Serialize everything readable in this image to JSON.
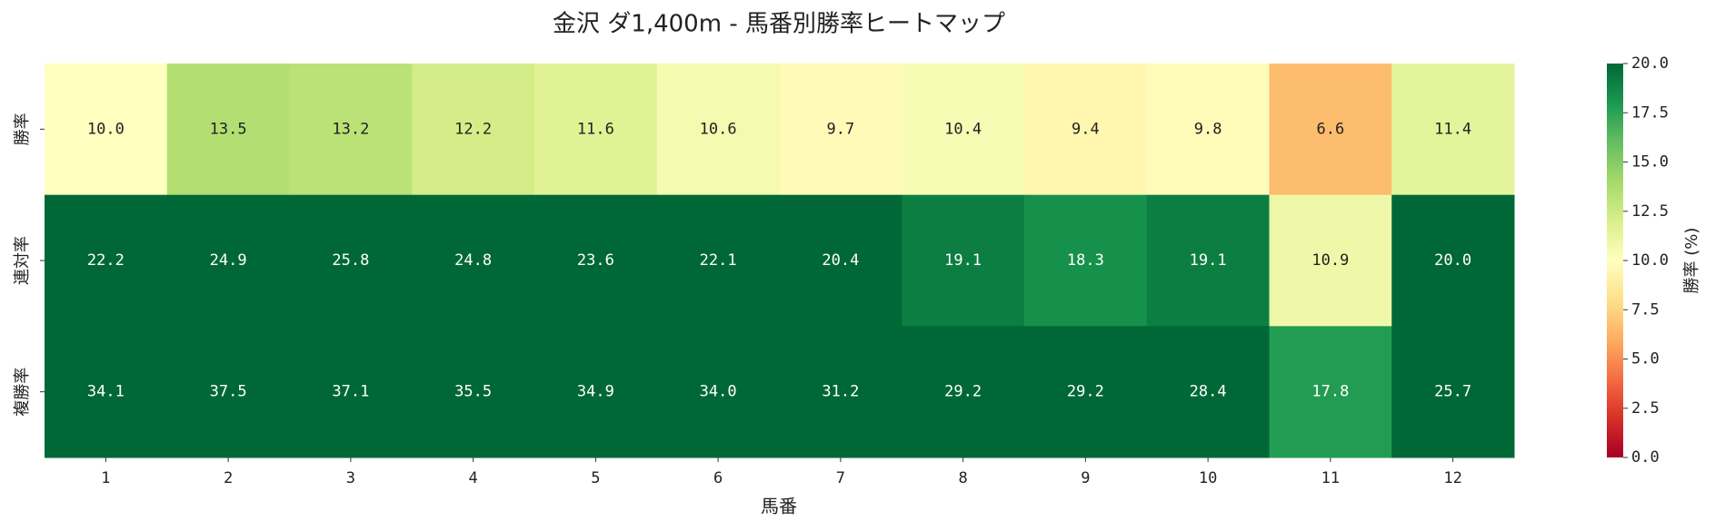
{
  "chart_data": {
    "type": "heatmap",
    "title": "金沢 ダ1,400m - 馬番別勝率ヒートマップ",
    "xlabel": "馬番",
    "x": [
      "1",
      "2",
      "3",
      "4",
      "5",
      "6",
      "7",
      "8",
      "9",
      "10",
      "11",
      "12"
    ],
    "y": [
      "勝率",
      "連対率",
      "複勝率"
    ],
    "values": [
      [
        10.0,
        13.5,
        13.2,
        12.2,
        11.6,
        10.6,
        9.7,
        10.4,
        9.4,
        9.8,
        6.6,
        11.4
      ],
      [
        22.2,
        24.9,
        25.8,
        24.8,
        23.6,
        22.1,
        20.4,
        19.1,
        18.3,
        19.1,
        10.9,
        20.0
      ],
      [
        34.1,
        37.5,
        37.1,
        35.5,
        34.9,
        34.0,
        31.2,
        29.2,
        29.2,
        28.4,
        17.8,
        25.7
      ]
    ],
    "value_labels": [
      [
        "10.0",
        "13.5",
        "13.2",
        "12.2",
        "11.6",
        "10.6",
        "9.7",
        "10.4",
        "9.4",
        "9.8",
        "6.6",
        "11.4"
      ],
      [
        "22.2",
        "24.9",
        "25.8",
        "24.8",
        "23.6",
        "22.1",
        "20.4",
        "19.1",
        "18.3",
        "19.1",
        "10.9",
        "20.0"
      ],
      [
        "34.1",
        "37.5",
        "37.1",
        "35.5",
        "34.9",
        "34.0",
        "31.2",
        "29.2",
        "29.2",
        "28.4",
        "17.8",
        "25.7"
      ]
    ],
    "colormap": "RdYlGn",
    "colorbar_label": "勝率 (%)",
    "zlim": [
      0,
      20
    ],
    "zticks": [
      {
        "value": 0,
        "label": "0.0"
      },
      2.5,
      {
        "value": 5,
        "label": "5.0"
      },
      7.5,
      {
        "value": 10,
        "label": "10.0"
      },
      12.5,
      {
        "value": 15,
        "label": "15.0"
      },
      17.5,
      {
        "value": 20,
        "label": "20.0"
      }
    ]
  }
}
